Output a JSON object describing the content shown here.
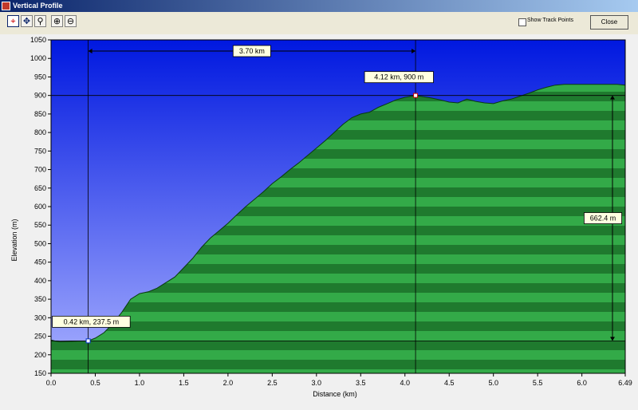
{
  "window": {
    "title": "Vertical Profile"
  },
  "toolbar": {
    "tools": [
      {
        "name": "select-track-icon",
        "glyph": "⌖"
      },
      {
        "name": "pan-icon",
        "glyph": "✥"
      },
      {
        "name": "magnifier-icon",
        "glyph": "⚲"
      },
      {
        "name": "zoom-in-icon",
        "glyph": "⊕"
      },
      {
        "name": "zoom-out-icon",
        "glyph": "⊖"
      }
    ],
    "show_track_points_label": "Show Track Points",
    "close_label": "Close"
  },
  "colors": {
    "sky_top": "#0018e0",
    "sky_bottom": "#a8b0ff",
    "terrain_dark": "#1f7a2e",
    "terrain_light": "#33aa48"
  },
  "chart_data": {
    "type": "area",
    "xlabel": "Distance   (km)",
    "ylabel": "Elevation  (m)",
    "xlim": [
      0,
      6.49
    ],
    "ylim": [
      150,
      1050
    ],
    "x_ticks": [
      "0.0",
      "0.5",
      "1.0",
      "1.5",
      "2.0",
      "2.5",
      "3.0",
      "3.5",
      "4.0",
      "4.5",
      "5.0",
      "5.5",
      "6.0",
      "6.49"
    ],
    "y_ticks": [
      "150",
      "200",
      "250",
      "300",
      "350",
      "400",
      "450",
      "500",
      "550",
      "600",
      "650",
      "700",
      "750",
      "800",
      "850",
      "900",
      "950",
      "1000",
      "1050"
    ],
    "grid": false,
    "series": [
      {
        "x": [
          0.0,
          0.05,
          0.1,
          0.2,
          0.3,
          0.42,
          0.5,
          0.6,
          0.7,
          0.8,
          0.9,
          1.0,
          1.1,
          1.2,
          1.3,
          1.4,
          1.5,
          1.6,
          1.7,
          1.8,
          1.9,
          2.0,
          2.1,
          2.2,
          2.3,
          2.4,
          2.5,
          2.6,
          2.7,
          2.8,
          2.9,
          3.0,
          3.1,
          3.2,
          3.3,
          3.4,
          3.5,
          3.6,
          3.7,
          3.8,
          3.9,
          4.0,
          4.12,
          4.2,
          4.3,
          4.4,
          4.5,
          4.6,
          4.7,
          4.8,
          4.9,
          5.0,
          5.1,
          5.2,
          5.3,
          5.4,
          5.5,
          5.6,
          5.7,
          5.8,
          5.9,
          6.0,
          6.1,
          6.2,
          6.3,
          6.4,
          6.49
        ],
        "values": [
          240,
          237,
          235,
          236,
          237,
          237.5,
          245,
          260,
          285,
          315,
          350,
          365,
          370,
          380,
          395,
          410,
          435,
          460,
          490,
          515,
          535,
          555,
          578,
          600,
          620,
          640,
          662,
          680,
          700,
          718,
          738,
          758,
          778,
          800,
          822,
          840,
          850,
          855,
          868,
          878,
          888,
          895,
          900,
          897,
          893,
          888,
          882,
          880,
          890,
          884,
          880,
          878,
          885,
          890,
          898,
          906,
          915,
          922,
          928,
          930,
          930,
          930,
          930,
          930,
          930,
          930,
          928
        ]
      }
    ],
    "markers": [
      {
        "x": 0.42,
        "y": 237.5,
        "label": "0.42 km, 237.5 m"
      },
      {
        "x": 4.12,
        "y": 900,
        "label": "4.12 km, 900 m"
      }
    ],
    "measurements": {
      "horizontal_label": "3.70 km",
      "vertical_label": "662.4 m"
    }
  }
}
